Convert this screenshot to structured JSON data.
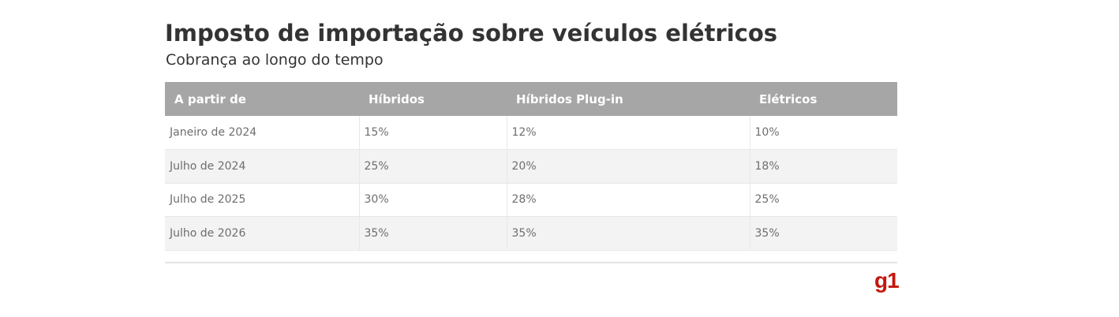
{
  "title": "Imposto de importação sobre veículos elétricos",
  "subtitle": "Cobrança ao longo do tempo",
  "logo_text": "g1",
  "colors": {
    "header_bg": "#a6a6a6",
    "header_text": "#ffffff",
    "row_alt_bg": "#f3f3f3",
    "logo": "#c4170c"
  },
  "chart_data": {
    "type": "table",
    "title": "Imposto de importação sobre veículos elétricos",
    "subtitle": "Cobrança ao longo do tempo",
    "columns": [
      "A partir de",
      "Híbridos",
      "Híbridos Plug-in",
      "Elétricos"
    ],
    "rows": [
      [
        "Janeiro de 2024",
        "15%",
        "12%",
        "10%"
      ],
      [
        "Julho de 2024",
        "25%",
        "20%",
        "18%"
      ],
      [
        "Julho de 2025",
        "30%",
        "28%",
        "25%"
      ],
      [
        "Julho de 2026",
        "35%",
        "35%",
        "35%"
      ]
    ]
  }
}
